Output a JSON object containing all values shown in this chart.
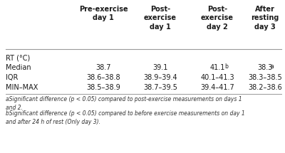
{
  "headers": [
    "",
    "Pre-exercise\nday 1",
    "Post-\nexercise\nday 1",
    "Post-\nexercise\nday 2",
    "After\nresting\nday 3"
  ],
  "row_labels": [
    "RT (°C)",
    "Median",
    "IQR",
    "MIN–MAX"
  ],
  "col1": [
    "",
    "38.7",
    "38.6–38.8",
    "38.5–38.9"
  ],
  "col2": [
    "",
    "39.1",
    "38.9–39.4",
    "38.7–39.5"
  ],
  "col3": [
    "",
    "41.1",
    "40.1–41.3",
    "39.4–41.7"
  ],
  "col4": [
    "",
    "38.3",
    "38.3–38.5",
    "38.2–38.6"
  ],
  "col3_sups": [
    "",
    "b",
    "",
    ""
  ],
  "col4_sups": [
    "",
    "a",
    "",
    ""
  ],
  "footnote_a": "aSignificant difference (p < 0.05) compared to post-exercise measurements on days 1\nand 2.",
  "footnote_b": "bSignificant difference (p < 0.05) compared to before exercise measurements on day 1\nand after 24 h of rest (Only day 3).",
  "bg_color": "#ffffff",
  "line_color": "#999999",
  "text_color": "#1a1a1a",
  "footnote_color": "#333333",
  "header_fontsize": 7.0,
  "body_fontsize": 7.0,
  "footnote_fontsize": 5.5
}
